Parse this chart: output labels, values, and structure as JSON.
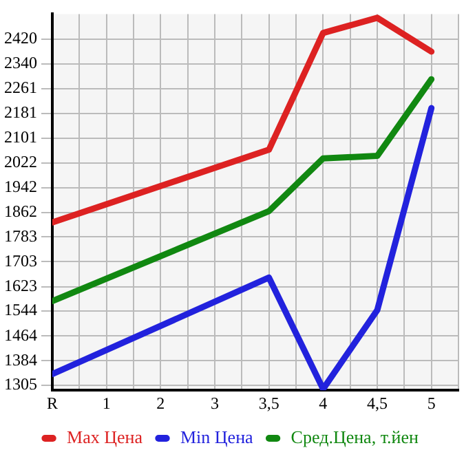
{
  "chart_data": {
    "type": "line",
    "categories": [
      "R",
      "1",
      "2",
      "3",
      "3,5",
      "4",
      "4,5",
      "5"
    ],
    "series": [
      {
        "name": "Max Цена",
        "color": "#dd2222",
        "values": [
          1830,
          null,
          null,
          null,
          2064,
          2440,
          2489,
          2380
        ]
      },
      {
        "name": "Min Цена",
        "color": "#2222dd",
        "values": [
          1341,
          null,
          null,
          null,
          1652,
          1293,
          1547,
          2198
        ]
      },
      {
        "name": "Сред.Цена, т.йен",
        "color": "#118811",
        "values": [
          1576,
          null,
          null,
          null,
          1866,
          2036,
          2044,
          2291
        ]
      }
    ],
    "ylim": [
      1289,
      2501
    ],
    "yticks": [
      1305,
      1384,
      1464,
      1544,
      1623,
      1703,
      1783,
      1862,
      1942,
      2022,
      2101,
      2181,
      2261,
      2340,
      2420
    ],
    "grid": true,
    "legend": "bottom",
    "marker": "none",
    "line_style": "solid"
  }
}
